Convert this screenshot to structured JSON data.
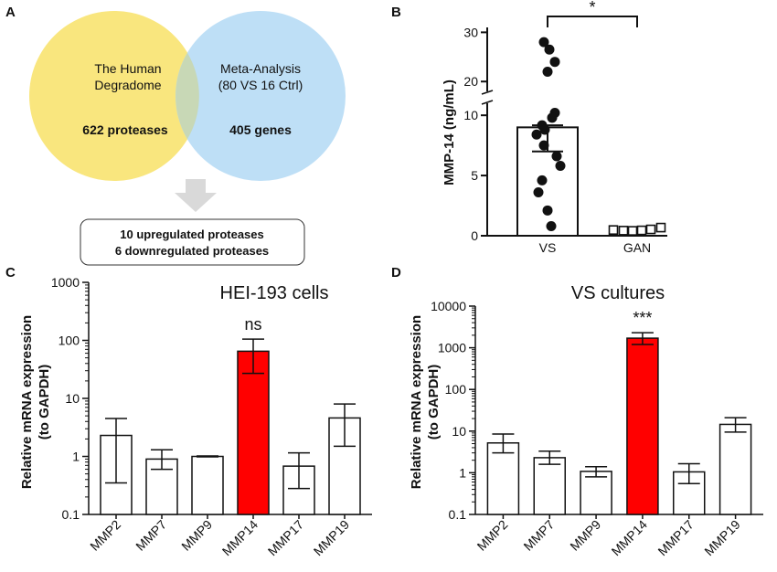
{
  "panel_labels": {
    "a": "A",
    "b": "B",
    "c": "C",
    "d": "D"
  },
  "venn": {
    "left": {
      "line1": "The Human",
      "line2": "Degradome",
      "count": "622 proteases",
      "color": "#f9e67e"
    },
    "right": {
      "line1": "Meta-Analysis",
      "line2": "(80 VS 16 Ctrl)",
      "count": "405 genes",
      "color": "#b3d9f5"
    },
    "result_line1": "10 upregulated proteases",
    "result_line2": "6 downregulated proteases"
  },
  "chart_data": [
    {
      "panel": "B",
      "type": "scatter",
      "title": "",
      "ylabel": "MMP-14 (ng/mL)",
      "xlabel": "",
      "categories": [
        "VS",
        "GAN"
      ],
      "axis_break": {
        "lower": [
          0,
          11
        ],
        "upper": [
          18,
          31
        ]
      },
      "yticks_lower": [
        "0",
        "5",
        "10"
      ],
      "yticks_upper": [
        "20",
        "30"
      ],
      "bars": [
        {
          "category": "VS",
          "mean": 9.0,
          "sem_low": 7.0,
          "sem_high": 11.1
        },
        {
          "category": "GAN",
          "mean": 0.15,
          "sem_low": 0.1,
          "sem_high": 0.2
        }
      ],
      "points_vs": [
        28,
        26.5,
        24,
        22,
        11.1,
        10.2,
        9.8,
        8.8,
        8.4,
        7.5,
        6.6,
        5.8,
        4.6,
        3.6,
        2.1,
        0.8
      ],
      "points_gan": [
        0.25,
        0.2,
        0.18,
        0.22,
        0.3,
        0.45
      ],
      "significance": "*"
    },
    {
      "panel": "C",
      "type": "bar",
      "title": "HEI-193 cells",
      "ylabel": "Relative mRNA expression",
      "ylabel2": "(to GAPDH)",
      "scale": "log",
      "ylim": [
        0.1,
        1000
      ],
      "yticks": [
        "0.1",
        "1",
        "10",
        "100",
        "1000"
      ],
      "categories": [
        "MMP2",
        "MMP7",
        "MMP9",
        "MMP14",
        "MMP17",
        "MMP19"
      ],
      "values": [
        2.3,
        0.9,
        1.0,
        65,
        0.68,
        4.6
      ],
      "err_low": [
        0.35,
        0.6,
        0.98,
        27,
        0.28,
        1.5
      ],
      "err_high": [
        4.5,
        1.3,
        1.02,
        105,
        1.15,
        8.0
      ],
      "highlight": "MMP14",
      "annotation": "ns",
      "bar_color": "#ffffff",
      "highlight_color": "#ff0000"
    },
    {
      "panel": "D",
      "type": "bar",
      "title": "VS cultures",
      "ylabel": "Relative mRNA expression",
      "ylabel2": "(to GAPDH)",
      "scale": "log",
      "ylim": [
        0.1,
        10000
      ],
      "yticks": [
        "0.1",
        "1",
        "10",
        "100",
        "1000",
        "10000"
      ],
      "categories": [
        "MMP2",
        "MMP7",
        "MMP9",
        "MMP14",
        "MMP17",
        "MMP19"
      ],
      "values": [
        5.2,
        2.3,
        1.08,
        1700,
        1.05,
        14.5
      ],
      "err_low": [
        3.0,
        1.6,
        0.8,
        1200,
        0.55,
        9.5
      ],
      "err_high": [
        8.5,
        3.3,
        1.4,
        2300,
        1.65,
        21
      ],
      "highlight": "MMP14",
      "annotation": "***",
      "bar_color": "#ffffff",
      "highlight_color": "#ff0000"
    }
  ]
}
